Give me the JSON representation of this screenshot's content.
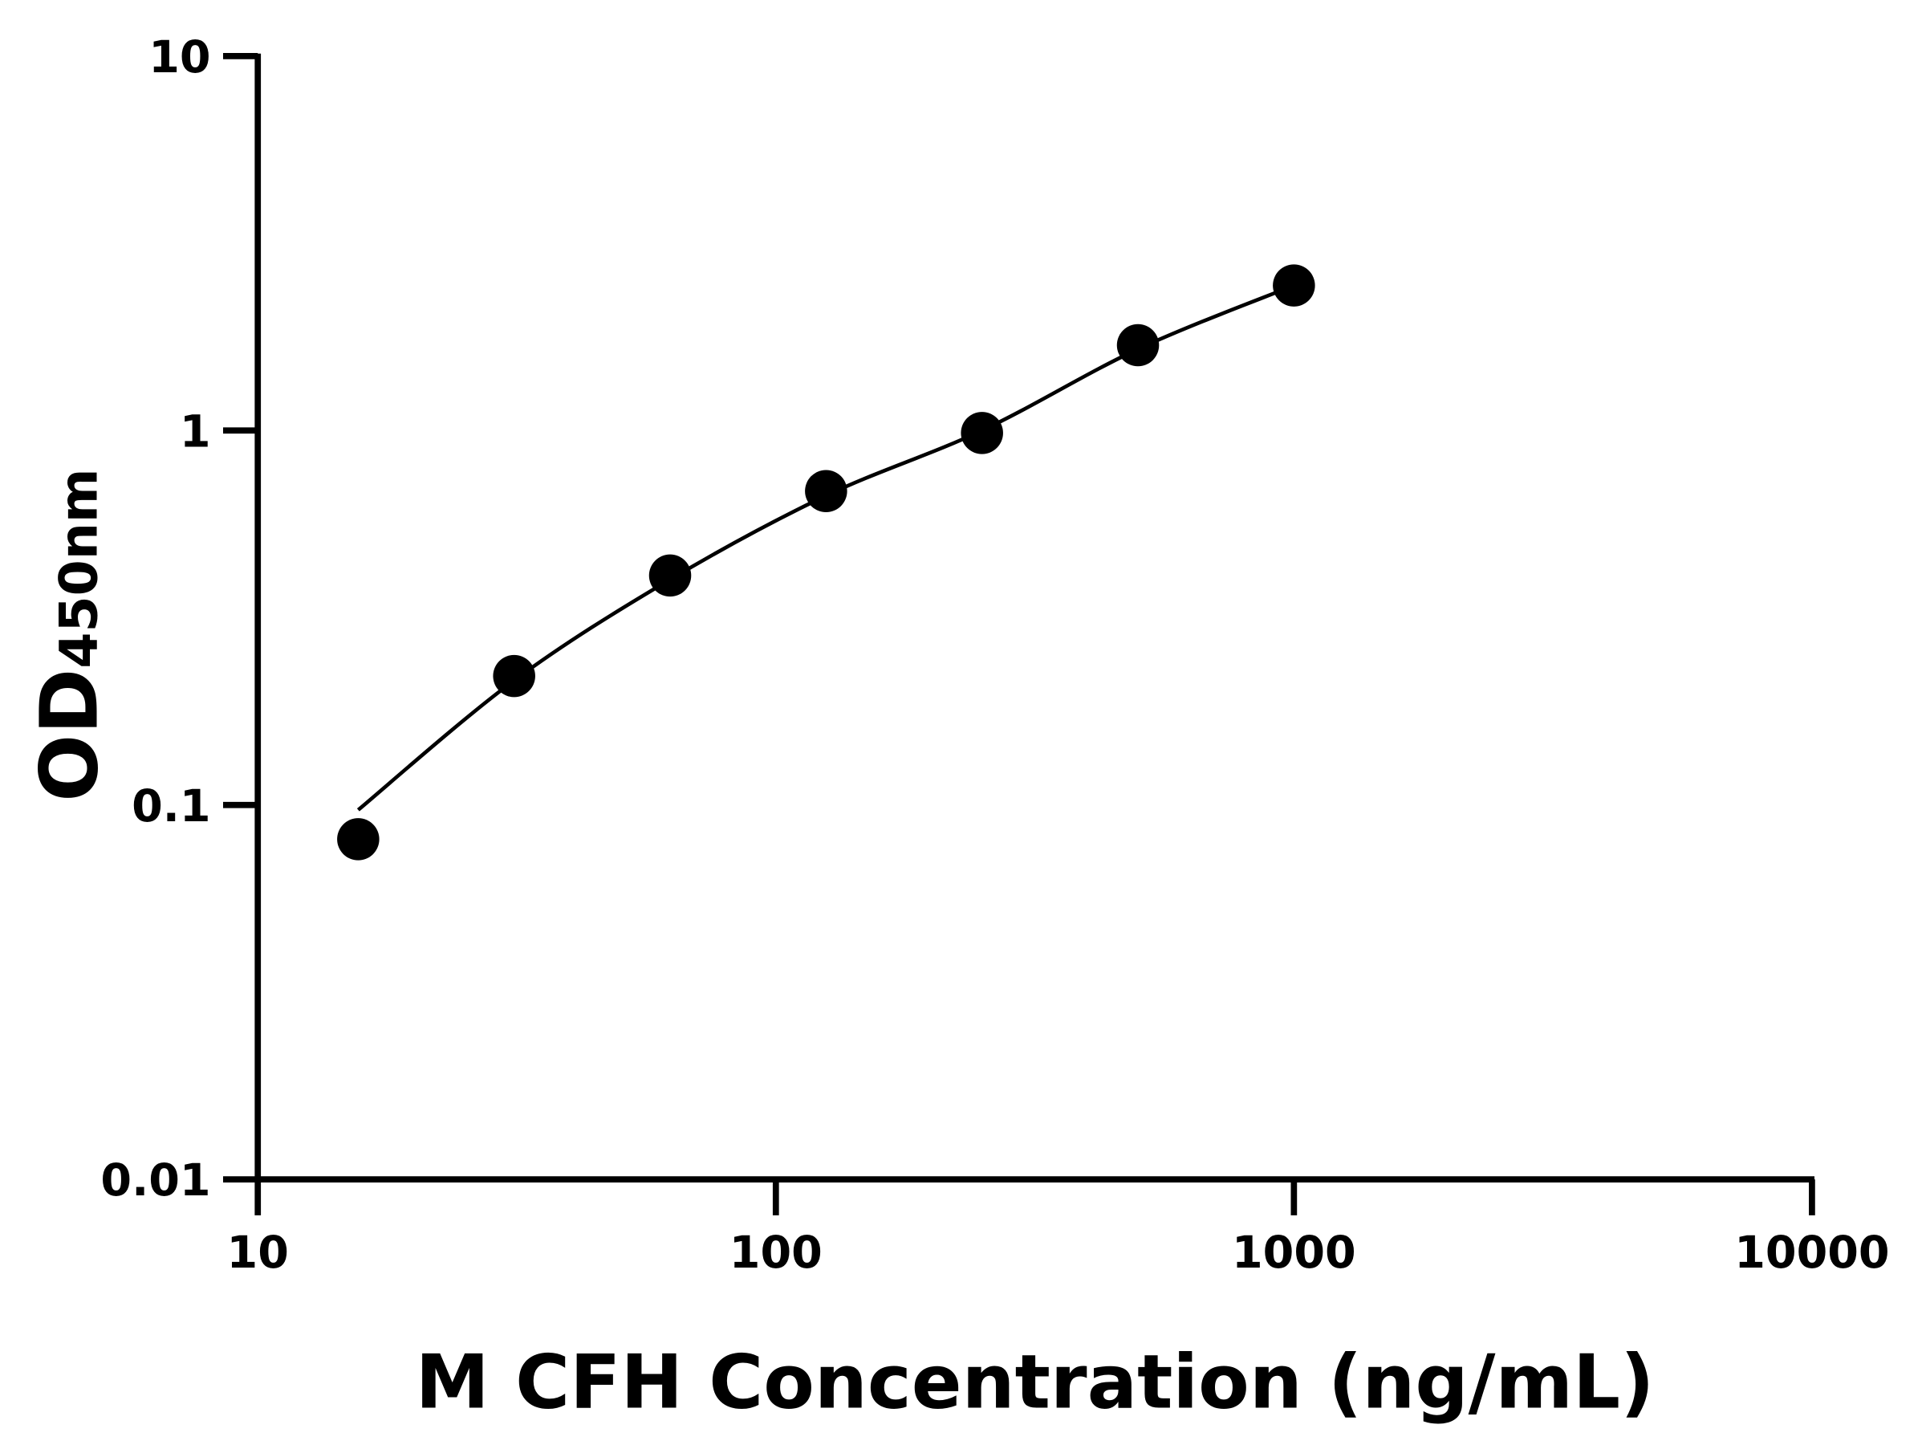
{
  "chart_data": {
    "type": "scatter",
    "title": "",
    "xlabel": "M CFH Concentration (ng/mL)",
    "ylabel_main": "OD",
    "ylabel_sub": "450nm",
    "x_scale": "log",
    "y_scale": "log",
    "xlim": [
      10,
      10000
    ],
    "ylim": [
      0.01,
      10
    ],
    "x_ticks": [
      "10",
      "100",
      "1000",
      "10000"
    ],
    "y_ticks": [
      "0.01",
      "0.1",
      "1",
      "10"
    ],
    "grid": false,
    "legend": "none",
    "series": [
      {
        "x": [
          15.625,
          31.25,
          62.5,
          125,
          250,
          500,
          1000
        ],
        "y": [
          0.081,
          0.221,
          0.41,
          0.689,
          0.985,
          1.69,
          2.44
        ],
        "marker": "circle",
        "color": "#000000"
      }
    ],
    "fit_curve": {
      "x": [
        15.625,
        31.25,
        62.5,
        125,
        250,
        500,
        1000
      ],
      "y": [
        0.097,
        0.215,
        0.4,
        0.67,
        1.0,
        1.65,
        2.44
      ],
      "color": "#000000"
    }
  }
}
